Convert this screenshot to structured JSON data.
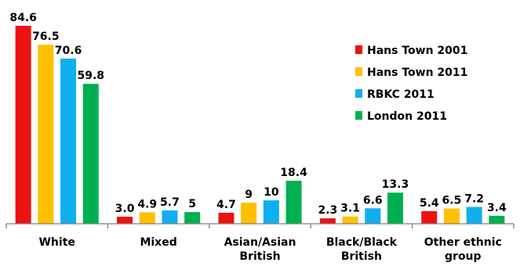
{
  "chart_data": {
    "type": "bar",
    "title": "",
    "xlabel": "",
    "ylabel": "",
    "ylim": [
      0,
      90
    ],
    "grid": false,
    "legend_position": "top-right",
    "categories": [
      [
        "White"
      ],
      [
        "Mixed"
      ],
      [
        "Asian/Asian",
        "British"
      ],
      [
        "Black/Black",
        "British"
      ],
      [
        "Other ethnic",
        "group"
      ]
    ],
    "series": [
      {
        "name": "Hans Town 2001",
        "color": "#ee1111",
        "values": [
          84.6,
          3.0,
          4.7,
          2.3,
          5.4
        ],
        "labels": [
          "84.6",
          "3.0",
          "4.7",
          "2.3",
          "5.4"
        ]
      },
      {
        "name": "Hans Town 2011",
        "color": "#ffc000",
        "values": [
          76.5,
          4.9,
          9,
          3.1,
          6.5
        ],
        "labels": [
          "76.5",
          "4.9",
          "9",
          "3.1",
          "6.5"
        ]
      },
      {
        "name": "RBKC 2011",
        "color": "#0fb0ef",
        "values": [
          70.6,
          5.7,
          10,
          6.6,
          7.2
        ],
        "labels": [
          "70.6",
          "5.7",
          "10",
          "6.6",
          "7.2"
        ]
      },
      {
        "name": "London 2011",
        "color": "#00b050",
        "values": [
          59.8,
          5,
          18.4,
          13.3,
          3.4
        ],
        "labels": [
          "59.8",
          "5",
          "18.4",
          "13.3",
          "3.4"
        ]
      }
    ]
  }
}
